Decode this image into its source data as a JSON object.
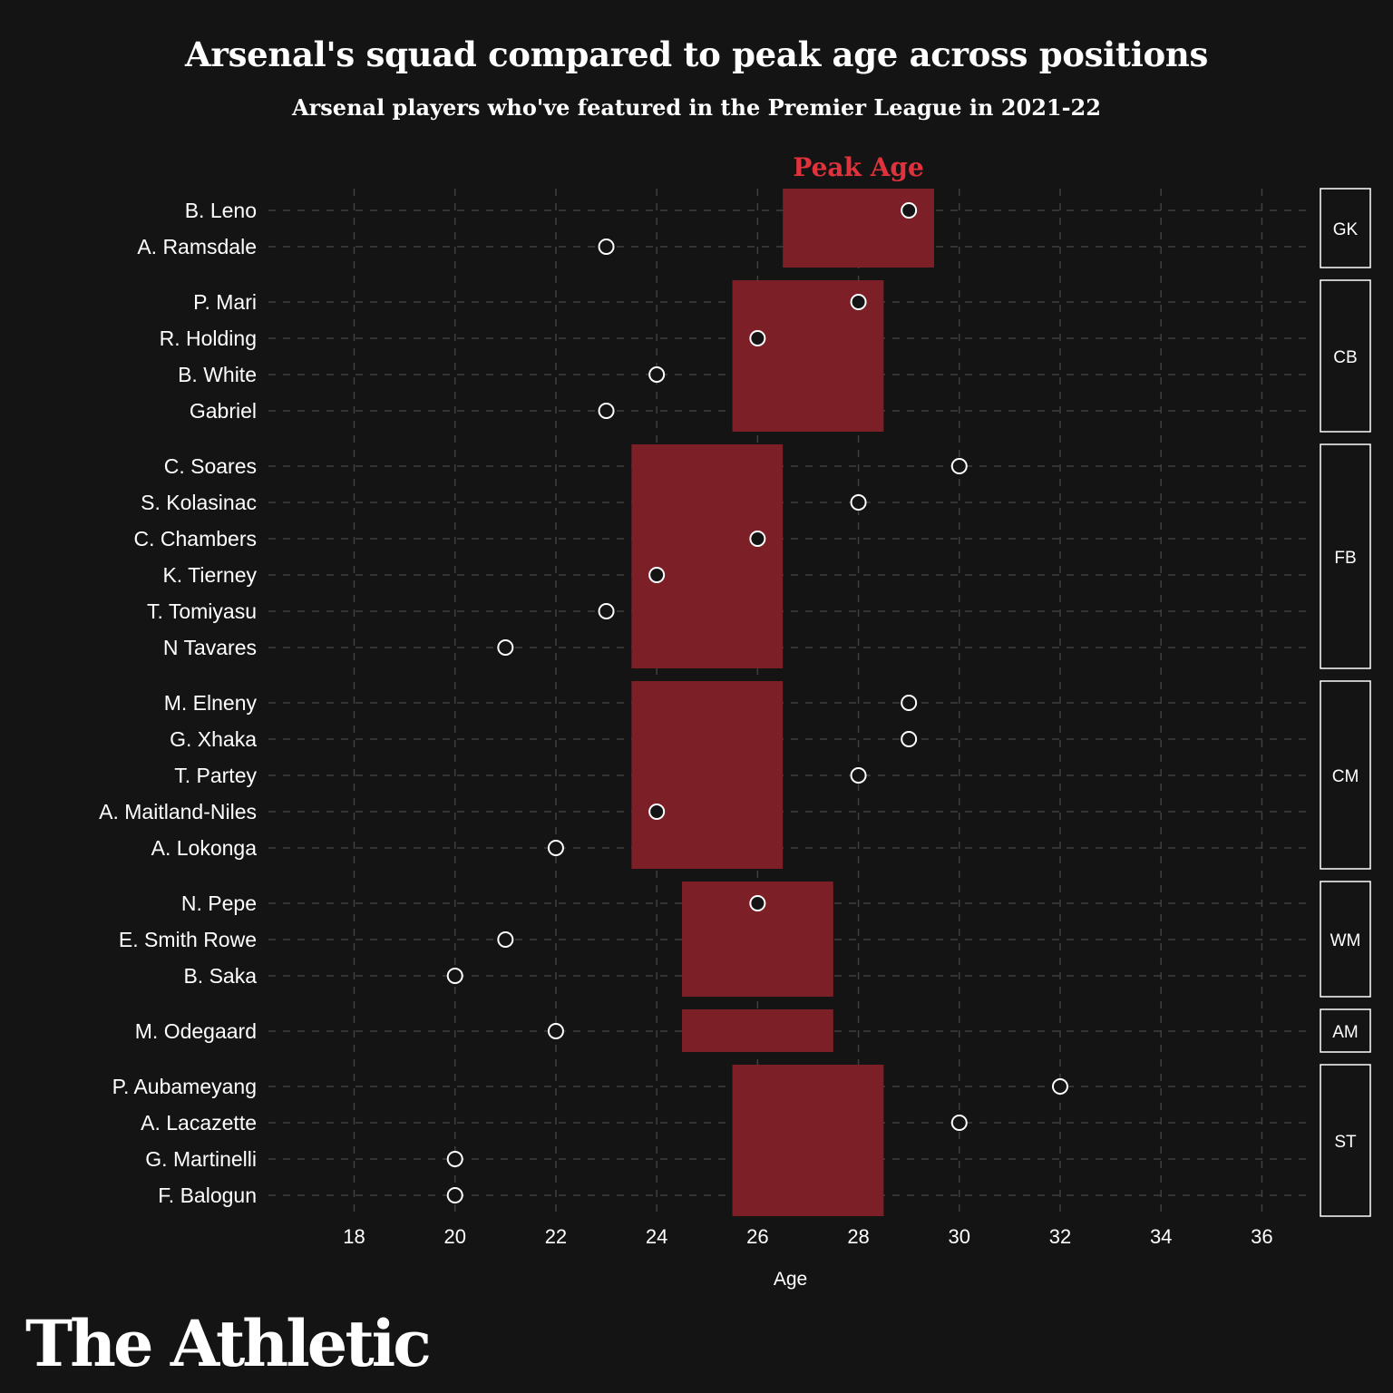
{
  "title": "Arsenal's squad compared to peak age across positions",
  "subtitle": "Arsenal players who've featured in the Premier League in 2021-22",
  "brand": "The Athletic",
  "colors": {
    "background": "#141414",
    "peak_band": "#7d1f27",
    "peak_label": "#e0323c",
    "grid": "#3f3f3f",
    "text": "#ffffff"
  },
  "chart_data": {
    "type": "scatter",
    "xlabel": "Age",
    "ylabel": "",
    "xlim": [
      16.3,
      37
    ],
    "xticks": [
      18,
      20,
      22,
      24,
      26,
      28,
      30,
      32,
      34,
      36
    ],
    "grid": true,
    "band_label": "Peak Age",
    "groups": [
      {
        "position": "GK",
        "peak_age": [
          26.5,
          29.5
        ],
        "players": [
          {
            "name": "B. Leno",
            "age": 29
          },
          {
            "name": "A. Ramsdale",
            "age": 23
          }
        ]
      },
      {
        "position": "CB",
        "peak_age": [
          25.5,
          28.5
        ],
        "players": [
          {
            "name": "P. Mari",
            "age": 28
          },
          {
            "name": "R. Holding",
            "age": 26
          },
          {
            "name": "B. White",
            "age": 24
          },
          {
            "name": "Gabriel",
            "age": 23
          }
        ]
      },
      {
        "position": "FB",
        "peak_age": [
          23.5,
          26.5
        ],
        "players": [
          {
            "name": "C. Soares",
            "age": 30
          },
          {
            "name": "S. Kolasinac",
            "age": 28
          },
          {
            "name": "C. Chambers",
            "age": 26
          },
          {
            "name": "K. Tierney",
            "age": 24
          },
          {
            "name": "T. Tomiyasu",
            "age": 23
          },
          {
            "name": "N Tavares",
            "age": 21
          }
        ]
      },
      {
        "position": "CM",
        "peak_age": [
          23.5,
          26.5
        ],
        "players": [
          {
            "name": "M. Elneny",
            "age": 29
          },
          {
            "name": "G. Xhaka",
            "age": 29
          },
          {
            "name": "T. Partey",
            "age": 28
          },
          {
            "name": "A. Maitland-Niles",
            "age": 24
          },
          {
            "name": "A. Lokonga",
            "age": 22
          }
        ]
      },
      {
        "position": "WM",
        "peak_age": [
          24.5,
          27.5
        ],
        "players": [
          {
            "name": "N. Pepe",
            "age": 26
          },
          {
            "name": "E. Smith Rowe",
            "age": 21
          },
          {
            "name": "B. Saka",
            "age": 20
          }
        ]
      },
      {
        "position": "AM",
        "peak_age": [
          24.5,
          27.5
        ],
        "players": [
          {
            "name": "M. Odegaard",
            "age": 22
          }
        ]
      },
      {
        "position": "ST",
        "peak_age": [
          25.5,
          28.5
        ],
        "players": [
          {
            "name": "P. Aubameyang",
            "age": 32
          },
          {
            "name": "A. Lacazette",
            "age": 30
          },
          {
            "name": "G. Martinelli",
            "age": 20
          },
          {
            "name": "F. Balogun",
            "age": 20
          }
        ]
      }
    ]
  }
}
